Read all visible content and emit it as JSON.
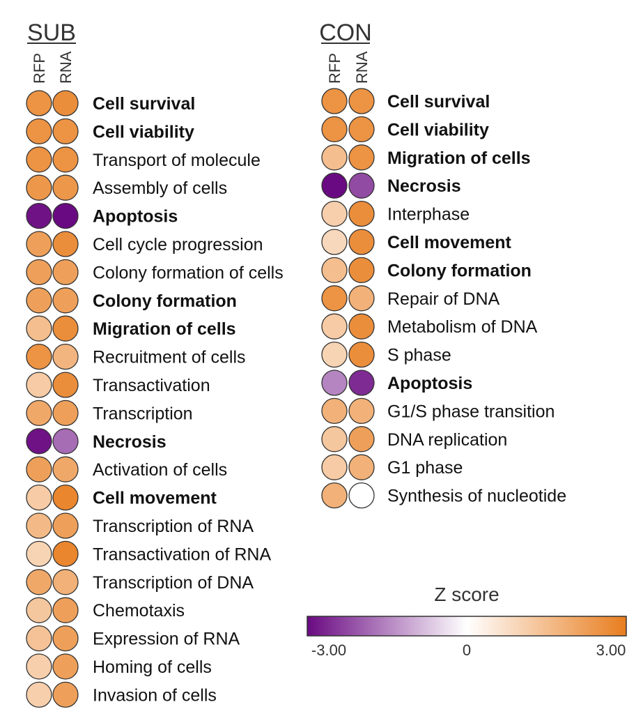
{
  "chart_data": {
    "type": "heatmap",
    "color_scale": {
      "title": "Z score",
      "min": -3.0,
      "max": 3.0,
      "ticks": [
        "-3.00",
        "0",
        "3.00"
      ],
      "low_color": "#6a0a82",
      "mid_color": "#ffffff",
      "high_color": "#e87d1e"
    },
    "panels": [
      {
        "title": "SUB",
        "columns": [
          "RFP",
          "RNA"
        ],
        "rows": [
          {
            "label": "Cell survival",
            "bold": true,
            "values": [
              2.5,
              2.6
            ]
          },
          {
            "label": "Cell viability",
            "bold": true,
            "values": [
              2.5,
              2.5
            ]
          },
          {
            "label": "Transport of molecule",
            "bold": false,
            "values": [
              2.5,
              2.5
            ]
          },
          {
            "label": "Assembly of cells",
            "bold": false,
            "values": [
              2.4,
              2.4
            ]
          },
          {
            "label": "Apoptosis",
            "bold": true,
            "values": [
              -2.9,
              -3.0
            ]
          },
          {
            "label": "Cell cycle progression",
            "bold": false,
            "values": [
              2.2,
              2.6
            ]
          },
          {
            "label": "Colony formation of cells",
            "bold": false,
            "values": [
              2.2,
              2.2
            ]
          },
          {
            "label": "Colony formation",
            "bold": true,
            "values": [
              2.2,
              2.2
            ]
          },
          {
            "label": "Migration of cells",
            "bold": true,
            "values": [
              1.5,
              2.6
            ]
          },
          {
            "label": "Recruitment of cells",
            "bold": false,
            "values": [
              2.5,
              1.7
            ]
          },
          {
            "label": "Transactivation",
            "bold": false,
            "values": [
              1.2,
              2.6
            ]
          },
          {
            "label": "Transcription",
            "bold": false,
            "values": [
              2.0,
              2.2
            ]
          },
          {
            "label": "Necrosis",
            "bold": true,
            "values": [
              -2.9,
              -1.8
            ]
          },
          {
            "label": "Activation of cells",
            "bold": false,
            "values": [
              2.2,
              2.0
            ]
          },
          {
            "label": "Cell movement",
            "bold": true,
            "values": [
              1.2,
              2.8
            ]
          },
          {
            "label": "Transcription of RNA",
            "bold": false,
            "values": [
              1.6,
              2.2
            ]
          },
          {
            "label": "Transactivation of RNA",
            "bold": false,
            "values": [
              1.0,
              2.8
            ]
          },
          {
            "label": "Transcription of DNA",
            "bold": false,
            "values": [
              2.0,
              1.8
            ]
          },
          {
            "label": "Chemotaxis",
            "bold": false,
            "values": [
              1.3,
              2.2
            ]
          },
          {
            "label": "Expression of RNA",
            "bold": false,
            "values": [
              1.4,
              2.2
            ]
          },
          {
            "label": "Homing of cells",
            "bold": false,
            "values": [
              1.1,
              2.2
            ]
          },
          {
            "label": "Invasion of cells",
            "bold": false,
            "values": [
              1.1,
              2.2
            ]
          }
        ]
      },
      {
        "title": "CON",
        "columns": [
          "RFP",
          "RNA"
        ],
        "rows": [
          {
            "label": "Cell survival",
            "bold": true,
            "values": [
              2.5,
              2.5
            ]
          },
          {
            "label": "Cell viability",
            "bold": true,
            "values": [
              2.5,
              2.5
            ]
          },
          {
            "label": "Migration of cells",
            "bold": true,
            "values": [
              1.5,
              2.5
            ]
          },
          {
            "label": "Necrosis",
            "bold": true,
            "values": [
              -3.0,
              -2.2
            ]
          },
          {
            "label": "Interphase",
            "bold": false,
            "values": [
              1.1,
              2.6
            ]
          },
          {
            "label": "Cell movement",
            "bold": true,
            "values": [
              0.9,
              2.6
            ]
          },
          {
            "label": "Colony formation",
            "bold": true,
            "values": [
              1.5,
              2.6
            ]
          },
          {
            "label": "Repair of DNA",
            "bold": false,
            "values": [
              2.5,
              1.8
            ]
          },
          {
            "label": "Metabolism of DNA",
            "bold": false,
            "values": [
              1.2,
              2.6
            ]
          },
          {
            "label": "S phase",
            "bold": false,
            "values": [
              1.0,
              2.6
            ]
          },
          {
            "label": "Apoptosis",
            "bold": true,
            "values": [
              -1.5,
              -2.6
            ]
          },
          {
            "label": "G1/S phase transition",
            "bold": false,
            "values": [
              1.8,
              1.8
            ]
          },
          {
            "label": "DNA replication",
            "bold": false,
            "values": [
              1.3,
              2.2
            ]
          },
          {
            "label": "G1 phase",
            "bold": false,
            "values": [
              1.2,
              1.8
            ]
          },
          {
            "label": "Synthesis of nucleotide",
            "bold": false,
            "values": [
              1.8,
              0.0
            ]
          }
        ]
      }
    ]
  }
}
